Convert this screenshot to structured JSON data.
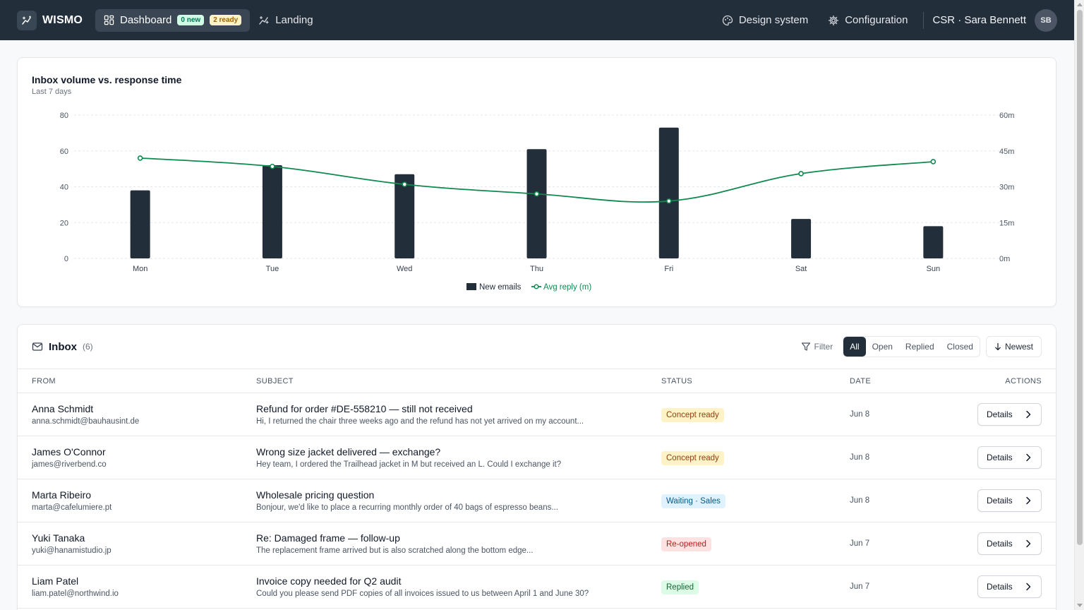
{
  "nav": {
    "brand": "WISMO",
    "dashboard_label": "Dashboard",
    "new_badge": "0 new",
    "ready_badge": "2 ready",
    "landing_label": "Landing",
    "design_system_label": "Design system",
    "configuration_label": "Configuration",
    "user_label": "CSR · Sara Bennett",
    "avatar_initials": "SB"
  },
  "chart_data": {
    "type": "bar",
    "title": "Inbox volume vs. response time",
    "subtitle": "Last 7 days",
    "categories": [
      "Mon",
      "Tue",
      "Wed",
      "Thu",
      "Fri",
      "Sat",
      "Sun"
    ],
    "series": [
      {
        "name": "New emails",
        "type": "bar",
        "axis": "left",
        "values": [
          38,
          52,
          47,
          61,
          73,
          22,
          18
        ],
        "color": "#232e3b"
      },
      {
        "name": "Avg reply (m)",
        "type": "line",
        "axis": "right",
        "values": [
          42,
          38.5,
          31,
          27,
          24,
          35.5,
          40.5
        ],
        "color": "#0f8a4f"
      }
    ],
    "y_left": {
      "ticks": [
        "0",
        "20",
        "40",
        "60",
        "80"
      ],
      "lim": [
        0,
        80
      ]
    },
    "y_right": {
      "ticks": [
        "0m",
        "15m",
        "30m",
        "45m",
        "60m"
      ],
      "lim": [
        0,
        60
      ]
    },
    "grid": true,
    "legend_position": "bottom-center"
  },
  "inbox": {
    "title": "Inbox",
    "count": "(6)",
    "filter_label": "Filter",
    "segments": [
      "All",
      "Open",
      "Replied",
      "Closed"
    ],
    "active_segment": "All",
    "sort_label": "Newest",
    "columns": [
      "FROM",
      "SUBJECT",
      "STATUS",
      "DATE",
      "ACTIONS"
    ],
    "rows": [
      {
        "name": "Anna Schmidt",
        "email": "anna.schmidt@bauhausint.de",
        "subject": "Refund for order #DE-558210 — still not received",
        "preview": "Hi, I returned the chair three weeks ago and the refund has not yet arrived on my account...",
        "status": "Concept ready",
        "status_kind": "concept",
        "date": "Jun 8",
        "action": "Details"
      },
      {
        "name": "James O'Connor",
        "email": "james@riverbend.co",
        "subject": "Wrong size jacket delivered — exchange?",
        "preview": "Hey team, I ordered the Trailhead jacket in M but received an L. Could I exchange it?",
        "status": "Concept ready",
        "status_kind": "concept",
        "date": "Jun 8",
        "action": "Details"
      },
      {
        "name": "Marta Ribeiro",
        "email": "marta@cafelumiere.pt",
        "subject": "Wholesale pricing question",
        "preview": "Bonjour, we'd like to place a recurring monthly order of 40 bags of espresso beans...",
        "status": "Waiting · Sales",
        "status_kind": "waiting",
        "date": "Jun 8",
        "action": "Details"
      },
      {
        "name": "Yuki Tanaka",
        "email": "yuki@hanamistudio.jp",
        "subject": "Re: Damaged frame — follow-up",
        "preview": "The replacement frame arrived but is also scratched along the bottom edge...",
        "status": "Re-opened",
        "status_kind": "reopened",
        "date": "Jun 7",
        "action": "Details"
      },
      {
        "name": "Liam Patel",
        "email": "liam.patel@northwind.io",
        "subject": "Invoice copy needed for Q2 audit",
        "preview": "Could you please send PDF copies of all invoices issued to us between April 1 and June 30?",
        "status": "Replied",
        "status_kind": "replied",
        "date": "Jun 7",
        "action": "Details"
      }
    ]
  }
}
